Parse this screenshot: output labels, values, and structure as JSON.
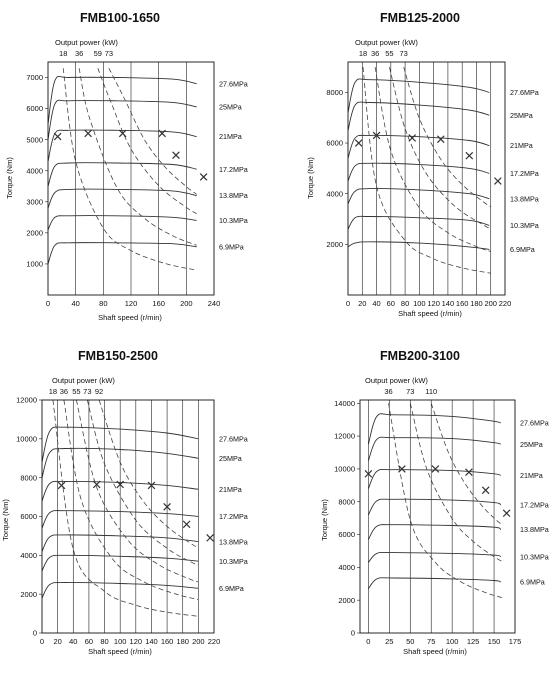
{
  "chart_data": [
    {
      "type": "line",
      "title": "FMB100-1650",
      "xlabel": "Shaft speed (r/min)",
      "ylabel": "Torque (Nm)",
      "xlim": [
        0,
        240
      ],
      "ylim": [
        0,
        7500
      ],
      "xticks": [
        "0",
        "40",
        "80",
        "120",
        "160",
        "200",
        "240"
      ],
      "yticks": [
        "1000",
        "2000",
        "3000",
        "4000",
        "5000",
        "6000",
        "7000"
      ],
      "power_title": "Output power (kW)",
      "power_labels": [
        "18",
        "36",
        "59",
        "73"
      ],
      "series": [
        {
          "name": "27.6MPa",
          "x": [
            0,
            10,
            30,
            100,
            180,
            215
          ],
          "y": [
            5500,
            6900,
            7000,
            7000,
            6950,
            6800
          ]
        },
        {
          "name": "25MPa",
          "x": [
            0,
            10,
            30,
            100,
            180,
            215
          ],
          "y": [
            5000,
            6150,
            6250,
            6250,
            6200,
            6050
          ]
        },
        {
          "name": "21MPa",
          "x": [
            0,
            10,
            30,
            100,
            180,
            215
          ],
          "y": [
            4300,
            5200,
            5300,
            5300,
            5250,
            5100
          ]
        },
        {
          "name": "17.2MPa",
          "x": [
            0,
            10,
            30,
            100,
            180,
            215
          ],
          "y": [
            3500,
            4150,
            4250,
            4250,
            4200,
            4050
          ]
        },
        {
          "name": "13.8MPa",
          "x": [
            0,
            10,
            30,
            100,
            180,
            215
          ],
          "y": [
            2800,
            3300,
            3400,
            3400,
            3350,
            3200
          ]
        },
        {
          "name": "10.3MPa",
          "x": [
            0,
            10,
            30,
            100,
            180,
            215
          ],
          "y": [
            2100,
            2500,
            2550,
            2550,
            2500,
            2400
          ]
        },
        {
          "name": "6.9MPa",
          "x": [
            0,
            10,
            30,
            100,
            180,
            215
          ],
          "y": [
            1000,
            1600,
            1680,
            1680,
            1650,
            1550
          ]
        }
      ],
      "power_curves": [
        {
          "label": "18",
          "x": [
            22,
            40,
            80,
            120,
            170,
            215
          ],
          "y": [
            7300,
            4300,
            2150,
            1430,
            1010,
            800
          ]
        },
        {
          "label": "36",
          "x": [
            45,
            60,
            100,
            140,
            180,
            215
          ],
          "y": [
            7300,
            5700,
            3440,
            2460,
            1910,
            1600
          ]
        },
        {
          "label": "59",
          "x": [
            72,
            90,
            120,
            160,
            200,
            215
          ],
          "y": [
            7300,
            6260,
            4700,
            3520,
            2820,
            2620
          ]
        },
        {
          "label": "73",
          "x": [
            88,
            110,
            140,
            170,
            200,
            215
          ],
          "y": [
            7300,
            6340,
            4980,
            4100,
            3490,
            3240
          ]
        }
      ],
      "markers": {
        "x": [
          14,
          58,
          108,
          165,
          185,
          225
        ],
        "y": [
          5100,
          5200,
          5200,
          5200,
          4500,
          3800
        ]
      }
    },
    {
      "type": "line",
      "title": "FMB125-2000",
      "xlabel": "Shaft speed (r/min)",
      "ylabel": "Torque (Nm)",
      "xlim": [
        0,
        220
      ],
      "ylim": [
        0,
        9200
      ],
      "xticks": [
        "0",
        "20",
        "40",
        "60",
        "80",
        "100",
        "120",
        "140",
        "160",
        "180",
        "200",
        "220"
      ],
      "yticks": [
        "2000",
        "4000",
        "6000",
        "8000"
      ],
      "power_title": "Output power (kW)",
      "power_labels": [
        "18",
        "36",
        "55",
        "73"
      ],
      "series": [
        {
          "name": "27.6MPa",
          "x": [
            0,
            10,
            30,
            100,
            170,
            198
          ],
          "y": [
            7200,
            8400,
            8500,
            8400,
            8200,
            8000
          ]
        },
        {
          "name": "25MPa",
          "x": [
            0,
            10,
            30,
            100,
            170,
            198
          ],
          "y": [
            6500,
            7500,
            7600,
            7500,
            7300,
            7100
          ]
        },
        {
          "name": "21MPa",
          "x": [
            0,
            10,
            30,
            100,
            170,
            198
          ],
          "y": [
            5400,
            6200,
            6300,
            6250,
            6100,
            5900
          ]
        },
        {
          "name": "17.2MPa",
          "x": [
            0,
            10,
            30,
            100,
            170,
            198
          ],
          "y": [
            4500,
            5100,
            5200,
            5150,
            5000,
            4800
          ]
        },
        {
          "name": "13.8MPa",
          "x": [
            0,
            10,
            30,
            100,
            170,
            198
          ],
          "y": [
            3600,
            4100,
            4200,
            4150,
            4000,
            3800
          ]
        },
        {
          "name": "10.3MPa",
          "x": [
            0,
            10,
            30,
            100,
            170,
            198
          ],
          "y": [
            2600,
            3050,
            3100,
            3050,
            2950,
            2750
          ]
        },
        {
          "name": "6.9MPa",
          "x": [
            0,
            10,
            30,
            100,
            170,
            198
          ],
          "y": [
            1900,
            2050,
            2100,
            2050,
            1900,
            1800
          ]
        }
      ],
      "power_curves": [
        {
          "label": "18",
          "x": [
            21,
            40,
            80,
            120,
            160,
            200
          ],
          "y": [
            9000,
            4300,
            2150,
            1430,
            1070,
            860
          ]
        },
        {
          "label": "36",
          "x": [
            38,
            60,
            100,
            140,
            180,
            200
          ],
          "y": [
            9000,
            5700,
            3440,
            2460,
            1910,
            1720
          ]
        },
        {
          "label": "55",
          "x": [
            58,
            80,
            110,
            150,
            190,
            200
          ],
          "y": [
            9000,
            6570,
            4780,
            3500,
            2760,
            2630
          ]
        },
        {
          "label": "73",
          "x": [
            78,
            100,
            130,
            160,
            190,
            200
          ],
          "y": [
            9000,
            6970,
            5360,
            4360,
            3670,
            3490
          ]
        }
      ],
      "markers": {
        "x": [
          15,
          40,
          90,
          130,
          170,
          210
        ],
        "y": [
          6000,
          6300,
          6200,
          6150,
          5500,
          4500
        ]
      }
    },
    {
      "type": "line",
      "title": "FMB150-2500",
      "xlabel": "Shaft speed (r/min)",
      "ylabel": "Torque (Nm)",
      "xlim": [
        0,
        220
      ],
      "ylim": [
        0,
        12000
      ],
      "xticks": [
        "0",
        "20",
        "40",
        "60",
        "80",
        "100",
        "120",
        "140",
        "160",
        "180",
        "200",
        "220"
      ],
      "yticks": [
        "0",
        "2000",
        "4000",
        "6000",
        "8000",
        "10000",
        "12000"
      ],
      "power_title": "Output power (kW)",
      "power_labels": [
        "18",
        "36",
        "55",
        "73",
        "92"
      ],
      "series": [
        {
          "name": "27.6MPa",
          "x": [
            0,
            10,
            30,
            100,
            160,
            200
          ],
          "y": [
            8800,
            10400,
            10600,
            10500,
            10300,
            10000
          ]
        },
        {
          "name": "25MPa",
          "x": [
            0,
            10,
            30,
            100,
            160,
            200
          ],
          "y": [
            8000,
            9300,
            9500,
            9450,
            9250,
            9000
          ]
        },
        {
          "name": "21MPa",
          "x": [
            0,
            10,
            30,
            100,
            160,
            200
          ],
          "y": [
            6800,
            7700,
            7800,
            7750,
            7600,
            7400
          ]
        },
        {
          "name": "17.2MPa",
          "x": [
            0,
            10,
            30,
            100,
            160,
            200
          ],
          "y": [
            5400,
            6200,
            6300,
            6250,
            6150,
            6000
          ]
        },
        {
          "name": "13.8MPa",
          "x": [
            0,
            10,
            30,
            100,
            160,
            200
          ],
          "y": [
            4200,
            4950,
            5050,
            5000,
            4900,
            4700
          ]
        },
        {
          "name": "10.3MPa",
          "x": [
            0,
            10,
            30,
            100,
            160,
            200
          ],
          "y": [
            3200,
            3900,
            4000,
            3950,
            3850,
            3700
          ]
        },
        {
          "name": "6.9MPa",
          "x": [
            0,
            10,
            30,
            100,
            160,
            200
          ],
          "y": [
            1800,
            2500,
            2600,
            2550,
            2450,
            2300
          ]
        }
      ],
      "power_curves": [
        {
          "label": "18",
          "x": [
            14,
            40,
            80,
            120,
            160,
            200
          ],
          "y": [
            12000,
            4300,
            2150,
            1430,
            1070,
            860
          ]
        },
        {
          "label": "36",
          "x": [
            28,
            50,
            90,
            130,
            170,
            200
          ],
          "y": [
            12000,
            6880,
            3820,
            2640,
            2020,
            1720
          ]
        },
        {
          "label": "55",
          "x": [
            44,
            70,
            110,
            150,
            190,
            200
          ],
          "y": [
            12000,
            7500,
            4780,
            3500,
            2760,
            2630
          ]
        },
        {
          "label": "73",
          "x": [
            58,
            80,
            120,
            160,
            190,
            200
          ],
          "y": [
            12000,
            8710,
            5810,
            4360,
            3670,
            3490
          ]
        },
        {
          "label": "92",
          "x": [
            73,
            100,
            130,
            160,
            190,
            200
          ],
          "y": [
            12000,
            8790,
            6760,
            5490,
            4620,
            4390
          ]
        }
      ],
      "markers": {
        "x": [
          25,
          70,
          100,
          140,
          160,
          185,
          215
        ],
        "y": [
          7600,
          7650,
          7650,
          7600,
          6500,
          5600,
          4900
        ]
      }
    },
    {
      "type": "line",
      "title": "FMB200-3100",
      "xlabel": "Shaft speed (r/min)",
      "ylabel": "Torque (Nm)",
      "xlim": [
        -10,
        175
      ],
      "ylim": [
        0,
        14200
      ],
      "xticks": [
        "0",
        "25",
        "50",
        "75",
        "100",
        "125",
        "150",
        "175"
      ],
      "yticks": [
        "0",
        "2000",
        "4000",
        "6000",
        "8000",
        "10000",
        "12000",
        "14000"
      ],
      "power_title": "Output power (kW)",
      "power_labels": [
        "36",
        "73",
        "110"
      ],
      "series": [
        {
          "name": "27.6MPa",
          "x": [
            0,
            10,
            30,
            100,
            150,
            158
          ],
          "y": [
            11500,
            13200,
            13300,
            13200,
            12900,
            12800
          ]
        },
        {
          "name": "25MPa",
          "x": [
            0,
            10,
            30,
            100,
            150,
            158
          ],
          "y": [
            10500,
            11800,
            11900,
            11850,
            11600,
            11500
          ]
        },
        {
          "name": "21MPa",
          "x": [
            0,
            10,
            30,
            100,
            150,
            158
          ],
          "y": [
            8800,
            9850,
            9950,
            9900,
            9700,
            9600
          ]
        },
        {
          "name": "17.2MPa",
          "x": [
            0,
            10,
            30,
            100,
            150,
            158
          ],
          "y": [
            7200,
            8050,
            8150,
            8100,
            7950,
            7800
          ]
        },
        {
          "name": "13.8MPa",
          "x": [
            0,
            10,
            30,
            100,
            150,
            158
          ],
          "y": [
            5700,
            6500,
            6600,
            6550,
            6450,
            6300
          ]
        },
        {
          "name": "10.3MPa",
          "x": [
            0,
            10,
            30,
            100,
            150,
            158
          ],
          "y": [
            4300,
            4850,
            4900,
            4850,
            4750,
            4650
          ]
        },
        {
          "name": "6.9MPa",
          "x": [
            0,
            10,
            30,
            100,
            150,
            158
          ],
          "y": [
            2700,
            3300,
            3350,
            3300,
            3200,
            3100
          ]
        }
      ],
      "power_curves": [
        {
          "label": "36",
          "x": [
            24,
            50,
            80,
            110,
            140,
            160
          ],
          "y": [
            14000,
            6880,
            4300,
            3130,
            2460,
            2150
          ]
        },
        {
          "label": "73",
          "x": [
            50,
            70,
            100,
            125,
            150,
            160
          ],
          "y": [
            14000,
            9960,
            6970,
            5580,
            4650,
            4360
          ]
        },
        {
          "label": "110",
          "x": [
            75,
            95,
            115,
            135,
            150,
            160
          ],
          "y": [
            14000,
            11060,
            9140,
            7780,
            7000,
            6570
          ]
        }
      ],
      "markers": {
        "x": [
          0,
          40,
          80,
          120,
          140,
          165
        ],
        "y": [
          9700,
          10000,
          10000,
          9800,
          8700,
          7300
        ]
      }
    }
  ]
}
